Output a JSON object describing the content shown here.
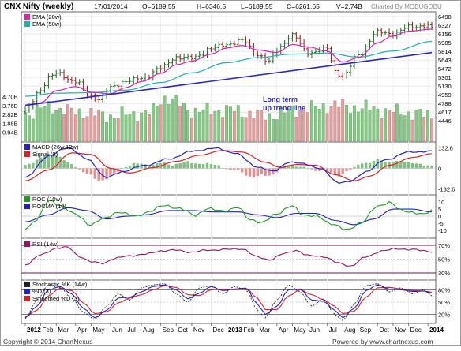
{
  "header": {
    "title": "CNX Nifty (weekly)",
    "date": "17/01/2014",
    "open": "O=6189.55",
    "high": "H=6346.5",
    "low": "L=6189.55",
    "close": "C=6261.65",
    "volume": "V=2.74B",
    "credit": "Charted By MOBUGOBU"
  },
  "footer": {
    "copyright": "Copyright © 2014 ChartNexus",
    "powered": "Powered by www.chartnexus.com"
  },
  "annotation": {
    "line1": "Long term",
    "line2": "up trend line"
  },
  "colors": {
    "up_bar": "#1f6b1f",
    "down_bar": "#a01818",
    "ema20": "#e020b0",
    "ema50": "#20b0b0",
    "trend_line": "#2828c8",
    "vol_up": "#86c886",
    "vol_down": "#e0a0a0",
    "macd": "#2020d0",
    "signal": "#e02020",
    "roc": "#18a018",
    "rocma": "#2020d0",
    "rsi": "#a01060",
    "stoch_k": "#202020",
    "stoch_d": "#2020d0",
    "stoch_sd": "#e02020"
  },
  "x_axis": {
    "labels": [
      "2012",
      "Feb",
      "Mar",
      "Apr",
      "May",
      "Jun",
      "Jul",
      "Aug",
      "Sep",
      "Oct",
      "Nov",
      "Dec",
      "2013",
      "Feb",
      "Mar",
      "Apr",
      "May",
      "Jun",
      "Jul",
      "Aug",
      "Sep",
      "Oct",
      "Nov",
      "Dec",
      "2014"
    ],
    "week_index": [
      0,
      4,
      8,
      13,
      17,
      22,
      26,
      30,
      35,
      39,
      43,
      48,
      52,
      56,
      60,
      65,
      69,
      73,
      78,
      82,
      86,
      91,
      95,
      99,
      104
    ]
  },
  "chart_data": [
    {
      "type": "candlestick",
      "title": "CNX Nifty (weekly)",
      "legend": [
        "EMA (20w)",
        "EMA (50w)"
      ],
      "ylim": [
        4480,
        6530
      ],
      "y_ticks": [
        "6498",
        "6327",
        "6156",
        "5985",
        "5814",
        "5643",
        "5472",
        "5301",
        "5130",
        "4959",
        "4788",
        "4617",
        "4446"
      ],
      "weeks": 106,
      "close_anchors": [
        [
          0,
          4640
        ],
        [
          4,
          5050
        ],
        [
          6,
          5300
        ],
        [
          8,
          5380
        ],
        [
          13,
          5220
        ],
        [
          17,
          4920
        ],
        [
          19,
          4880
        ],
        [
          22,
          5100
        ],
        [
          26,
          5230
        ],
        [
          30,
          5280
        ],
        [
          35,
          5480
        ],
        [
          39,
          5700
        ],
        [
          43,
          5680
        ],
        [
          48,
          5870
        ],
        [
          52,
          5950
        ],
        [
          56,
          6030
        ],
        [
          60,
          5750
        ],
        [
          63,
          5600
        ],
        [
          65,
          5860
        ],
        [
          69,
          6130
        ],
        [
          73,
          5790
        ],
        [
          78,
          5860
        ],
        [
          80,
          5420
        ],
        [
          82,
          5320
        ],
        [
          86,
          5740
        ],
        [
          91,
          6190
        ],
        [
          95,
          6160
        ],
        [
          99,
          6290
        ],
        [
          104,
          6320
        ],
        [
          105,
          6262
        ]
      ],
      "ema20_anchors": [
        [
          0,
          4760
        ],
        [
          4,
          4800
        ],
        [
          8,
          5040
        ],
        [
          13,
          5120
        ],
        [
          17,
          5010
        ],
        [
          22,
          4980
        ],
        [
          26,
          5100
        ],
        [
          30,
          5220
        ],
        [
          35,
          5380
        ],
        [
          39,
          5550
        ],
        [
          43,
          5620
        ],
        [
          48,
          5760
        ],
        [
          52,
          5880
        ],
        [
          56,
          5930
        ],
        [
          60,
          5840
        ],
        [
          65,
          5790
        ],
        [
          69,
          5950
        ],
        [
          73,
          5900
        ],
        [
          78,
          5820
        ],
        [
          82,
          5600
        ],
        [
          86,
          5690
        ],
        [
          91,
          5980
        ],
        [
          95,
          6120
        ],
        [
          99,
          6210
        ],
        [
          105,
          6250
        ]
      ],
      "ema50_anchors": [
        [
          0,
          4930
        ],
        [
          8,
          4990
        ],
        [
          17,
          5000
        ],
        [
          26,
          5050
        ],
        [
          35,
          5200
        ],
        [
          43,
          5390
        ],
        [
          52,
          5590
        ],
        [
          60,
          5690
        ],
        [
          69,
          5760
        ],
        [
          78,
          5780
        ],
        [
          86,
          5700
        ],
        [
          95,
          5820
        ],
        [
          105,
          6010
        ]
      ],
      "trend_line": {
        "from": [
          0,
          4750
        ],
        "to": [
          105,
          5790
        ]
      },
      "volume_ticks": [
        "4.70B",
        "3.76B",
        "2.82B",
        "1.88B",
        "0.94B"
      ],
      "volume_max_b": 5.0,
      "volume_anchors": [
        [
          0,
          2.9
        ],
        [
          6,
          3.6
        ],
        [
          13,
          3.1
        ],
        [
          22,
          2.7
        ],
        [
          32,
          3.0
        ],
        [
          36,
          4.6
        ],
        [
          44,
          3.2
        ],
        [
          52,
          3.3
        ],
        [
          62,
          2.7
        ],
        [
          72,
          3.4
        ],
        [
          80,
          3.8
        ],
        [
          88,
          3.5
        ],
        [
          96,
          3.1
        ],
        [
          105,
          2.74
        ]
      ]
    },
    {
      "type": "line",
      "title": "MACD (26w,12w)",
      "legend": [
        "MACD (26w,12w)",
        "Signal (9)"
      ],
      "ylim": [
        -160,
        160
      ],
      "y_ticks": [
        "132.6",
        "0",
        "-132.6"
      ],
      "macd_anchors": [
        [
          0,
          -60
        ],
        [
          6,
          80
        ],
        [
          11,
          135
        ],
        [
          16,
          60
        ],
        [
          21,
          -60
        ],
        [
          25,
          -20
        ],
        [
          31,
          20
        ],
        [
          37,
          60
        ],
        [
          43,
          110
        ],
        [
          49,
          130
        ],
        [
          54,
          100
        ],
        [
          60,
          10
        ],
        [
          64,
          -20
        ],
        [
          68,
          40
        ],
        [
          72,
          30
        ],
        [
          76,
          0
        ],
        [
          81,
          -90
        ],
        [
          84,
          -85
        ],
        [
          88,
          -20
        ],
        [
          93,
          55
        ],
        [
          99,
          105
        ],
        [
          105,
          110
        ]
      ],
      "signal_anchors": [
        [
          0,
          -80
        ],
        [
          6,
          -10
        ],
        [
          12,
          100
        ],
        [
          17,
          90
        ],
        [
          22,
          0
        ],
        [
          27,
          -30
        ],
        [
          33,
          5
        ],
        [
          39,
          45
        ],
        [
          45,
          85
        ],
        [
          51,
          115
        ],
        [
          56,
          105
        ],
        [
          62,
          40
        ],
        [
          66,
          5
        ],
        [
          70,
          25
        ],
        [
          75,
          20
        ],
        [
          80,
          -40
        ],
        [
          85,
          -80
        ],
        [
          89,
          -50
        ],
        [
          94,
          20
        ],
        [
          100,
          70
        ],
        [
          105,
          95
        ]
      ]
    },
    {
      "type": "line",
      "title": "ROC (10w)",
      "legend": [
        "ROC (10w)",
        "ROCMA (10)"
      ],
      "ylim": [
        -15,
        14
      ],
      "y_ticks": [
        "10",
        "5",
        "0",
        "-5",
        "-10"
      ],
      "roc_anchors": [
        [
          0,
          -9
        ],
        [
          3,
          -2
        ],
        [
          6,
          11
        ],
        [
          9,
          8
        ],
        [
          13,
          1
        ],
        [
          17,
          -6
        ],
        [
          20,
          -2
        ],
        [
          24,
          3
        ],
        [
          28,
          0
        ],
        [
          32,
          3
        ],
        [
          36,
          8
        ],
        [
          40,
          5
        ],
        [
          44,
          1
        ],
        [
          47,
          5
        ],
        [
          52,
          4
        ],
        [
          55,
          6
        ],
        [
          58,
          -2
        ],
        [
          61,
          -5
        ],
        [
          65,
          2
        ],
        [
          69,
          7
        ],
        [
          72,
          1
        ],
        [
          75,
          0
        ],
        [
          79,
          -5
        ],
        [
          83,
          -10
        ],
        [
          87,
          -4
        ],
        [
          91,
          7
        ],
        [
          94,
          10
        ],
        [
          97,
          4
        ],
        [
          100,
          3
        ],
        [
          103,
          1
        ],
        [
          105,
          4
        ]
      ],
      "rocma_anchors": [
        [
          0,
          -4
        ],
        [
          6,
          1
        ],
        [
          11,
          6
        ],
        [
          16,
          4
        ],
        [
          21,
          -2
        ],
        [
          26,
          0
        ],
        [
          31,
          1
        ],
        [
          37,
          4
        ],
        [
          43,
          4
        ],
        [
          49,
          3
        ],
        [
          55,
          3
        ],
        [
          60,
          1
        ],
        [
          65,
          -1
        ],
        [
          70,
          2
        ],
        [
          75,
          2
        ],
        [
          80,
          -3
        ],
        [
          85,
          -6
        ],
        [
          90,
          -2
        ],
        [
          95,
          5
        ],
        [
          100,
          5
        ],
        [
          105,
          3
        ]
      ]
    },
    {
      "type": "line",
      "title": "RSI (14w)",
      "legend": [
        "RSI (14w)"
      ],
      "ylim": [
        22,
        78
      ],
      "y_ticks": [
        "70%",
        "50%",
        "30%"
      ],
      "reference_lines": [
        70,
        30
      ],
      "rsi_anchors": [
        [
          0,
          42
        ],
        [
          4,
          56
        ],
        [
          8,
          66
        ],
        [
          11,
          67
        ],
        [
          14,
          54
        ],
        [
          17,
          46
        ],
        [
          20,
          44
        ],
        [
          23,
          51
        ],
        [
          27,
          55
        ],
        [
          31,
          57
        ],
        [
          35,
          62
        ],
        [
          39,
          63
        ],
        [
          43,
          60
        ],
        [
          47,
          63
        ],
        [
          52,
          64
        ],
        [
          56,
          65
        ],
        [
          60,
          53
        ],
        [
          63,
          49
        ],
        [
          67,
          58
        ],
        [
          70,
          63
        ],
        [
          73,
          55
        ],
        [
          77,
          54
        ],
        [
          81,
          44
        ],
        [
          84,
          40
        ],
        [
          88,
          53
        ],
        [
          92,
          62
        ],
        [
          96,
          65
        ],
        [
          100,
          64
        ],
        [
          103,
          62
        ],
        [
          105,
          61
        ]
      ]
    },
    {
      "type": "line",
      "title": "Stochastic %K (14w)",
      "legend": [
        "Stochastic %K (14w)",
        "%D (3)",
        "Smoothed %D (3)"
      ],
      "ylim": [
        0,
        100
      ],
      "y_ticks": [
        "80%",
        "50%",
        "20%"
      ],
      "reference_lines": [
        80,
        20
      ],
      "k_anchors": [
        [
          0,
          10
        ],
        [
          3,
          55
        ],
        [
          6,
          92
        ],
        [
          9,
          85
        ],
        [
          12,
          60
        ],
        [
          15,
          25
        ],
        [
          18,
          8
        ],
        [
          21,
          40
        ],
        [
          24,
          70
        ],
        [
          27,
          55
        ],
        [
          30,
          85
        ],
        [
          33,
          92
        ],
        [
          36,
          95
        ],
        [
          39,
          70
        ],
        [
          42,
          50
        ],
        [
          45,
          85
        ],
        [
          48,
          90
        ],
        [
          51,
          70
        ],
        [
          54,
          88
        ],
        [
          57,
          80
        ],
        [
          60,
          30
        ],
        [
          62,
          12
        ],
        [
          65,
          55
        ],
        [
          68,
          92
        ],
        [
          71,
          75
        ],
        [
          74,
          40
        ],
        [
          77,
          58
        ],
        [
          80,
          20
        ],
        [
          82,
          5
        ],
        [
          85,
          45
        ],
        [
          88,
          90
        ],
        [
          91,
          95
        ],
        [
          94,
          75
        ],
        [
          97,
          85
        ],
        [
          100,
          70
        ],
        [
          103,
          80
        ],
        [
          105,
          65
        ]
      ],
      "d_anchors": [
        [
          0,
          12
        ],
        [
          3,
          40
        ],
        [
          6,
          80
        ],
        [
          9,
          88
        ],
        [
          12,
          70
        ],
        [
          15,
          35
        ],
        [
          18,
          12
        ],
        [
          21,
          30
        ],
        [
          24,
          60
        ],
        [
          27,
          62
        ],
        [
          30,
          75
        ],
        [
          33,
          88
        ],
        [
          36,
          92
        ],
        [
          39,
          80
        ],
        [
          42,
          58
        ],
        [
          45,
          72
        ],
        [
          48,
          88
        ],
        [
          51,
          78
        ],
        [
          54,
          82
        ],
        [
          57,
          84
        ],
        [
          60,
          45
        ],
        [
          62,
          20
        ],
        [
          65,
          40
        ],
        [
          68,
          80
        ],
        [
          71,
          82
        ],
        [
          74,
          55
        ],
        [
          77,
          52
        ],
        [
          80,
          30
        ],
        [
          82,
          12
        ],
        [
          85,
          35
        ],
        [
          88,
          78
        ],
        [
          91,
          92
        ],
        [
          94,
          82
        ],
        [
          97,
          80
        ],
        [
          100,
          76
        ],
        [
          103,
          77
        ],
        [
          105,
          72
        ]
      ],
      "sd_anchors": [
        [
          0,
          15
        ],
        [
          3,
          30
        ],
        [
          6,
          65
        ],
        [
          9,
          84
        ],
        [
          12,
          78
        ],
        [
          15,
          48
        ],
        [
          18,
          22
        ],
        [
          21,
          26
        ],
        [
          24,
          48
        ],
        [
          27,
          60
        ],
        [
          30,
          68
        ],
        [
          33,
          80
        ],
        [
          36,
          90
        ],
        [
          39,
          86
        ],
        [
          42,
          68
        ],
        [
          45,
          66
        ],
        [
          48,
          80
        ],
        [
          51,
          82
        ],
        [
          54,
          80
        ],
        [
          57,
          83
        ],
        [
          60,
          60
        ],
        [
          62,
          32
        ],
        [
          65,
          32
        ],
        [
          68,
          65
        ],
        [
          71,
          80
        ],
        [
          74,
          68
        ],
        [
          77,
          56
        ],
        [
          80,
          40
        ],
        [
          82,
          22
        ],
        [
          85,
          28
        ],
        [
          88,
          62
        ],
        [
          91,
          85
        ],
        [
          94,
          86
        ],
        [
          97,
          82
        ],
        [
          100,
          78
        ],
        [
          103,
          77
        ],
        [
          105,
          74
        ]
      ]
    }
  ]
}
